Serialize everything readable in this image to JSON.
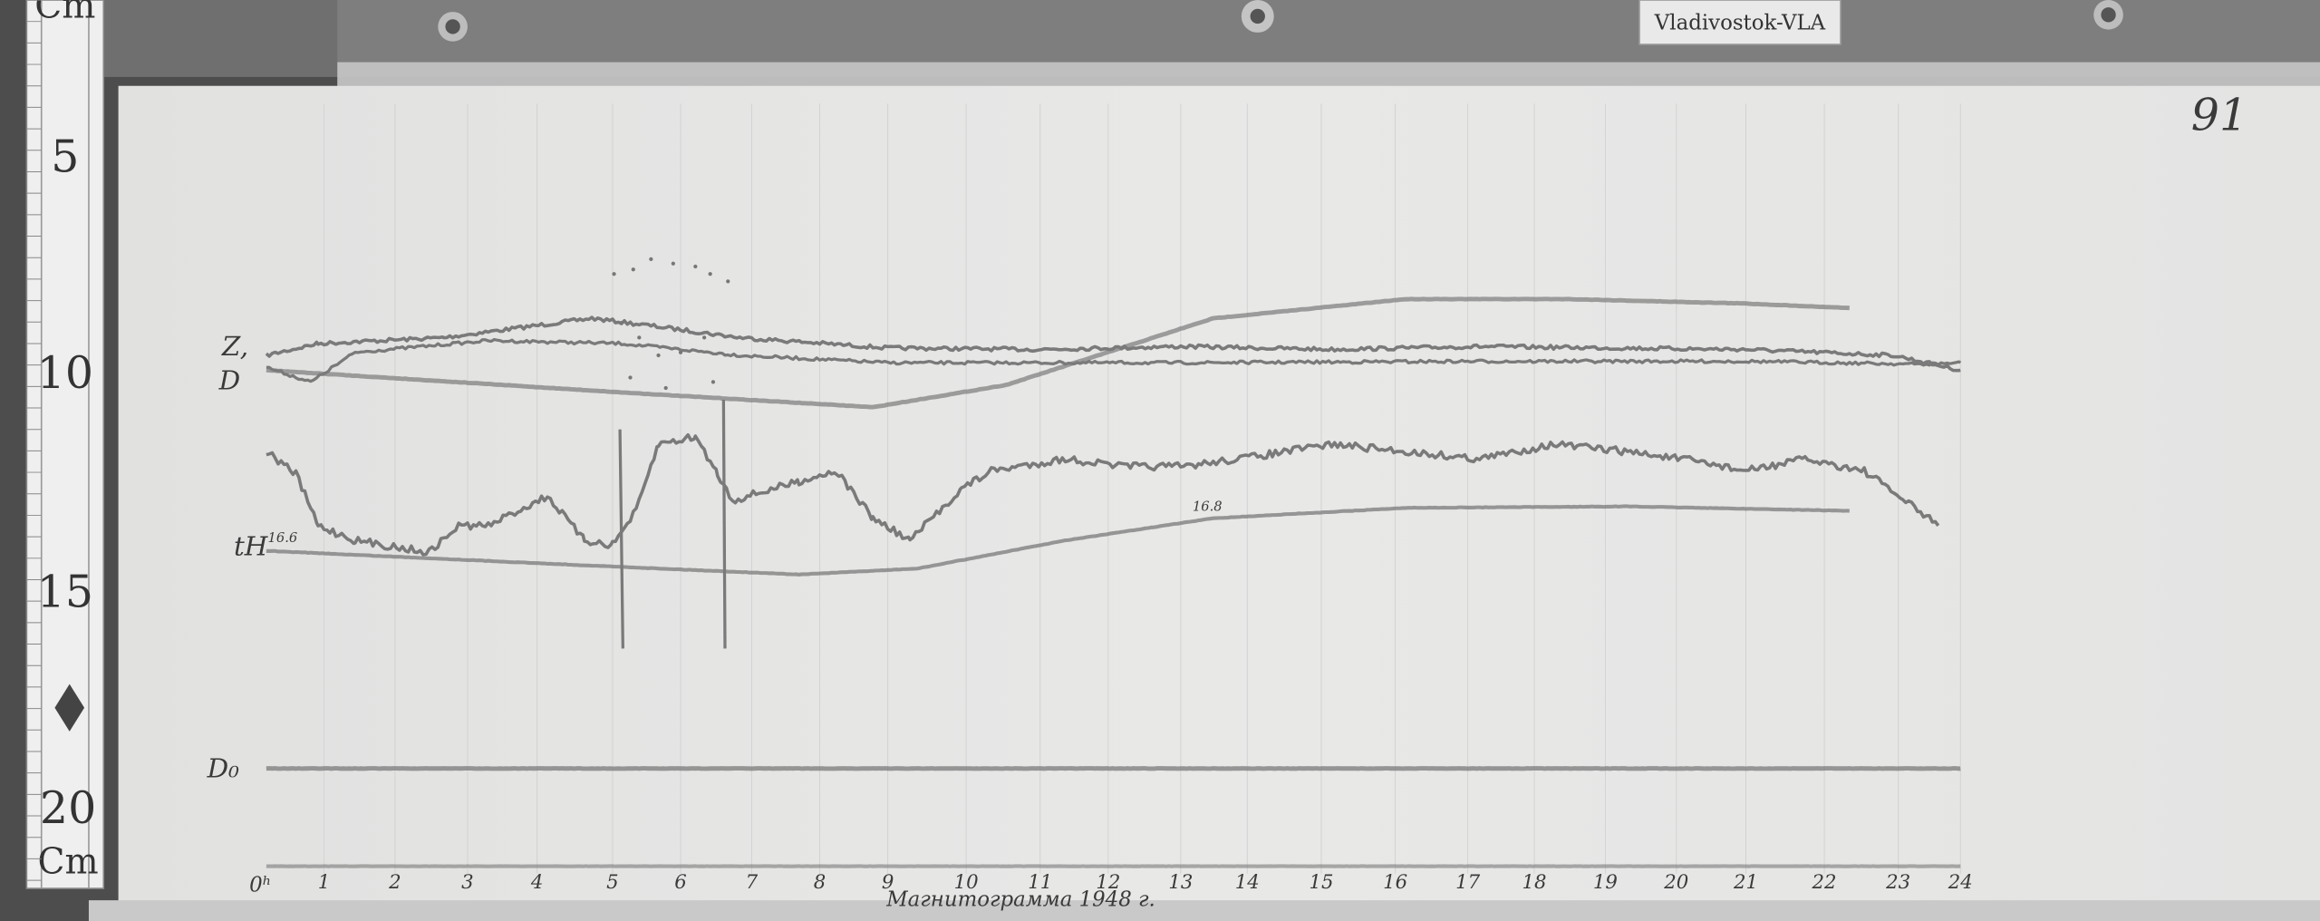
{
  "station_label": "Vladivostok-VLA",
  "sheet_number": "91",
  "ruler": {
    "unit_top": "Cm",
    "unit_bottom": "Cm",
    "marks": [
      "5",
      "10",
      "15",
      "20"
    ]
  },
  "trace_labels": {
    "z": "Z,",
    "d": "D",
    "h": "tH",
    "d_zero": "D₀"
  },
  "annotations": {
    "h_baseline_start": "16.6",
    "h_baseline_mid": "16.8"
  },
  "hour_axis": {
    "start_label": "0ʰ",
    "hours": [
      "1",
      "2",
      "3",
      "4",
      "5",
      "6",
      "7",
      "8",
      "9",
      "10",
      "11",
      "12",
      "13",
      "14",
      "15",
      "16",
      "17",
      "18",
      "19",
      "20",
      "21",
      "22",
      "23",
      "24"
    ]
  },
  "footer_handwriting": {
    "text": "Магнитограмма 1948 г."
  },
  "colors": {
    "paper": "#e4e4e3",
    "trace": "#7a7a7a",
    "frame": "#4d4d4d"
  }
}
